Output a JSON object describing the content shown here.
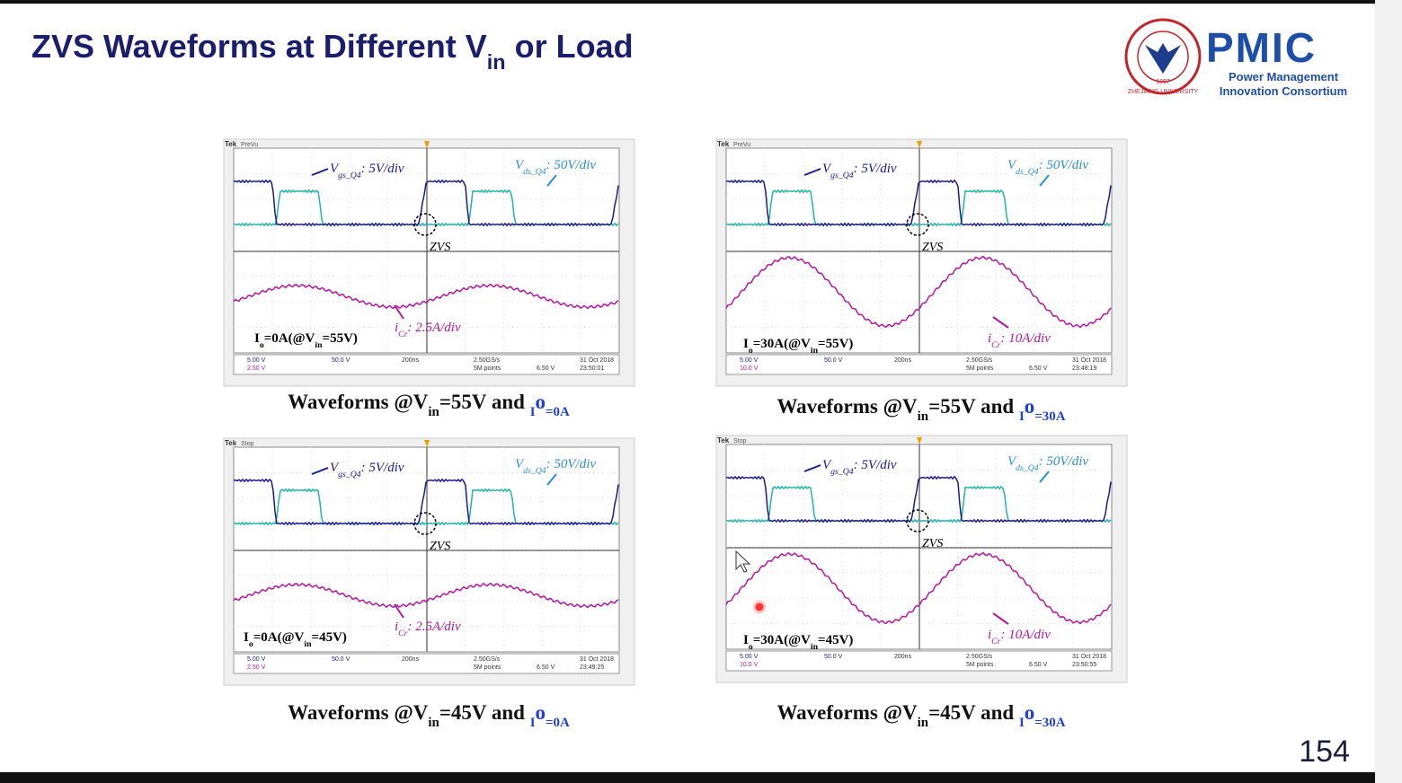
{
  "header": {
    "title": [
      "ZVS Waveforms at Different V",
      "in",
      " or Load"
    ]
  },
  "logo": {
    "name": "PMIC",
    "line1": "Power Management",
    "line2": "Innovation Consortium",
    "year": "1897",
    "university": "ZHEJIANG UNIVERSITY"
  },
  "scopes": [
    {
      "status": "PreVu",
      "vgs": [
        "V",
        "gs_Q4",
        ": 5V/div"
      ],
      "vds": [
        "V",
        "ds_Q4",
        ": 50V/div"
      ],
      "zvs": "ZVS",
      "icr": [
        "i",
        "Cr",
        ": 2.5A/div"
      ],
      "condition": [
        "I",
        "o",
        "=0A(@V",
        "in",
        "=55V)"
      ],
      "readouts": [
        "5.00 V",
        "2.50 V",
        "50.0 V",
        "200ns",
        "2.50GS/s",
        "5M points",
        "6.50 V",
        "31 Oct",
        "2018",
        "23:50:01"
      ],
      "caption": [
        "Waveforms @V",
        "in",
        "=55V and ",
        "I",
        "o",
        "=0A"
      ]
    },
    {
      "status": "PreVu",
      "vgs": [
        "V",
        "gs_Q4",
        ": 5V/div"
      ],
      "vds": [
        "V",
        "ds_Q4",
        ": 50V/div"
      ],
      "zvs": "ZVS",
      "icr": [
        "i",
        "Cr",
        ": 10A/div"
      ],
      "condition": [
        "I",
        "o",
        "=30A(@V",
        "in",
        "=55V)"
      ],
      "readouts": [
        "5.00 V",
        "10.0 V",
        "50.0 V",
        "200ns",
        "2.50GS/s",
        "5M points",
        "6.50 V",
        "31 Oct",
        "2018",
        "23:48:19"
      ],
      "caption": [
        "Waveforms @V",
        "in",
        "=55V and ",
        "I",
        "o",
        "=30A"
      ]
    },
    {
      "status": "Stop",
      "vgs": [
        "V",
        "gs_Q4",
        ": 5V/div"
      ],
      "vds": [
        "V",
        "ds_Q4",
        ": 50V/div"
      ],
      "zvs": "ZVS",
      "icr": [
        "i",
        "Cr",
        ": 2.5A/div"
      ],
      "condition": [
        "I",
        "o",
        "=0A(@V",
        "in",
        "=45V)"
      ],
      "readouts": [
        "5.00 V",
        "2.50 V",
        "50.0 V",
        "200ns",
        "2.50GS/s",
        "5M points",
        "6.50 V",
        "31 Oct",
        "2018",
        "23:49:25"
      ],
      "caption": [
        "Waveforms @V",
        "in",
        "=45V and ",
        "I",
        "o",
        "=0A"
      ]
    },
    {
      "status": "Stop",
      "vgs": [
        "V",
        "gs_Q4",
        ": 5V/div"
      ],
      "vds": [
        "V",
        "ds_Q4",
        ": 50V/div"
      ],
      "zvs": "ZVS",
      "icr": [
        "i",
        "Cr",
        ": 10A/div"
      ],
      "condition": [
        "I",
        "o",
        "=30A(@V",
        "in",
        "=45V)"
      ],
      "readouts": [
        "5.00 V",
        "10.0 V",
        "50.0 V",
        "200ns",
        "2.50GS/s",
        "5M points",
        "6.50 V",
        "31 Oct",
        "2018",
        "23:50:55"
      ],
      "caption": [
        "Waveforms @V",
        "in",
        "=45V and ",
        "I",
        "o",
        "=30A"
      ]
    }
  ],
  "page_number": "154"
}
